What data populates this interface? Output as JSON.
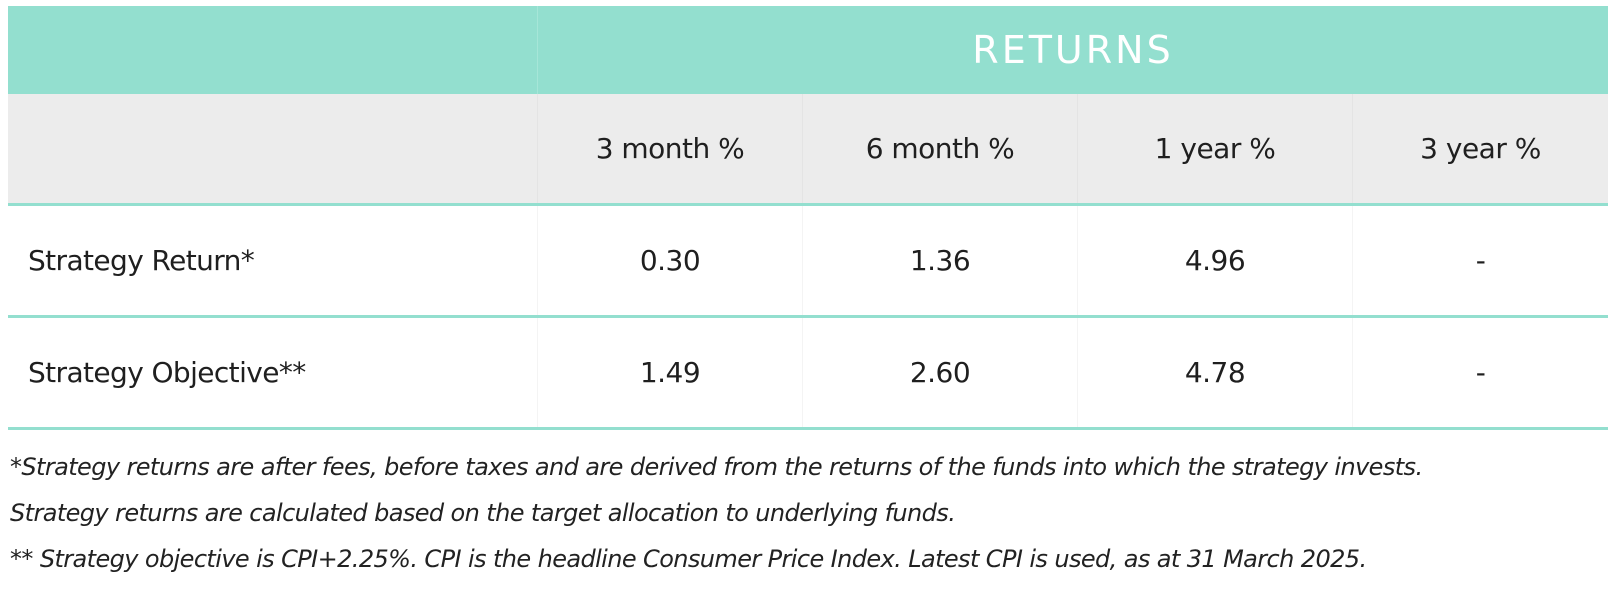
{
  "table": {
    "group_title": "RETURNS",
    "columns": [
      "",
      "3 month %",
      "6 month %",
      "1 year %",
      "3 year %"
    ],
    "rows": [
      {
        "label": "Strategy Return*",
        "values": [
          "0.30",
          "1.36",
          "4.96",
          "-"
        ]
      },
      {
        "label": "Strategy Objective**",
        "values": [
          "1.49",
          "2.60",
          "4.78",
          "-"
        ]
      }
    ]
  },
  "notes": [
    "*Strategy returns are after fees, before taxes and are derived from the returns of the funds into which the strategy invests.",
    "Strategy returns are calculated based on the target allocation to underlying funds.",
    "** Strategy objective is CPI+2.25%. CPI is the headline Consumer Price Index. Latest CPI is used, as at 31 March 2025."
  ],
  "colors": {
    "accent": "#93dfcf",
    "header_bg": "#ececec",
    "title_text": "#ffffff"
  }
}
